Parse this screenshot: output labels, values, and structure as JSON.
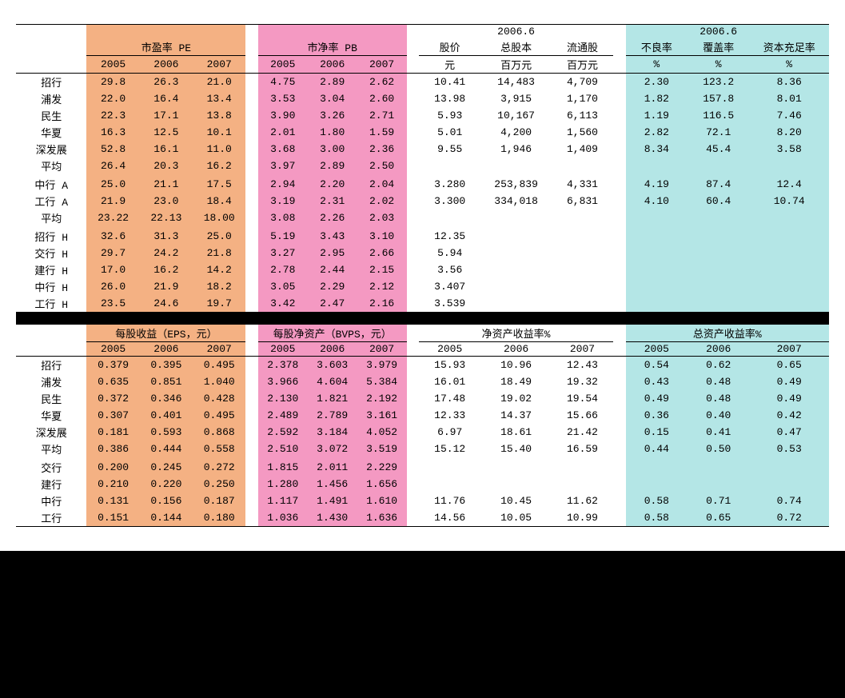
{
  "colors": {
    "page_bg": "#ffffff",
    "outer_bg": "#000000",
    "orange": "#f4b183",
    "pink": "#f499c2",
    "cyan": "#b4e6e6",
    "border": "#000000",
    "text": "#000000"
  },
  "typography": {
    "font_family": "SimSun / monospace",
    "font_size_pt": 10
  },
  "table1": {
    "super_headers": {
      "pe": "市盈率 PE",
      "pb": "市净率 PB",
      "price": "股价",
      "period": "2006.6",
      "total_cap": "总股本",
      "float": "流通股",
      "npl": "不良率",
      "coverage": "覆盖率",
      "car": "资本充足率"
    },
    "sub_headers": {
      "y2005": "2005",
      "y2006": "2006",
      "y2007": "2007",
      "yuan": "元",
      "mil_yuan": "百万元",
      "mil_yuan2": "百万元",
      "pct": "%"
    },
    "rows": [
      {
        "name": "招行",
        "pe": [
          "29.8",
          "26.3",
          "21.0"
        ],
        "pb": [
          "4.75",
          "2.89",
          "2.62"
        ],
        "price": "10.41",
        "cap": "14,483",
        "float": "4,709",
        "npl": "2.30",
        "cov": "123.2",
        "car": "8.36"
      },
      {
        "name": "浦发",
        "pe": [
          "22.0",
          "16.4",
          "13.4"
        ],
        "pb": [
          "3.53",
          "3.04",
          "2.60"
        ],
        "price": "13.98",
        "cap": "3,915",
        "float": "1,170",
        "npl": "1.82",
        "cov": "157.8",
        "car": "8.01"
      },
      {
        "name": "民生",
        "pe": [
          "22.3",
          "17.1",
          "13.8"
        ],
        "pb": [
          "3.90",
          "3.26",
          "2.71"
        ],
        "price": "5.93",
        "cap": "10,167",
        "float": "6,113",
        "npl": "1.19",
        "cov": "116.5",
        "car": "7.46"
      },
      {
        "name": "华夏",
        "pe": [
          "16.3",
          "12.5",
          "10.1"
        ],
        "pb": [
          "2.01",
          "1.80",
          "1.59"
        ],
        "price": "5.01",
        "cap": "4,200",
        "float": "1,560",
        "npl": "2.82",
        "cov": "72.1",
        "car": "8.20"
      },
      {
        "name": "深发展",
        "pe": [
          "52.8",
          "16.1",
          "11.0"
        ],
        "pb": [
          "3.68",
          "3.00",
          "2.36"
        ],
        "price": "9.55",
        "cap": "1,946",
        "float": "1,409",
        "npl": "8.34",
        "cov": "45.4",
        "car": "3.58"
      },
      {
        "name": "平均",
        "pe": [
          "26.4",
          "20.3",
          "16.2"
        ],
        "pb": [
          "3.97",
          "2.89",
          "2.50"
        ],
        "price": "",
        "cap": "",
        "float": "",
        "npl": "",
        "cov": "",
        "car": ""
      },
      {
        "name": "",
        "pe": [
          "",
          "",
          ""
        ],
        "pb": [
          "",
          "",
          ""
        ],
        "price": "",
        "cap": "",
        "float": "",
        "npl": "",
        "cov": "",
        "car": ""
      },
      {
        "name": "中行 A",
        "pe": [
          "25.0",
          "21.1",
          "17.5"
        ],
        "pb": [
          "2.94",
          "2.20",
          "2.04"
        ],
        "price": "3.280",
        "cap": "253,839",
        "float": "4,331",
        "npl": "4.19",
        "cov": "87.4",
        "car": "12.4"
      },
      {
        "name": "工行 A",
        "pe": [
          "21.9",
          "23.0",
          "18.4"
        ],
        "pb": [
          "3.19",
          "2.31",
          "2.02"
        ],
        "price": "3.300",
        "cap": "334,018",
        "float": "6,831",
        "npl": "4.10",
        "cov": "60.4",
        "car": "10.74"
      },
      {
        "name": "平均",
        "pe": [
          "23.22",
          "22.13",
          "18.00"
        ],
        "pb": [
          "3.08",
          "2.26",
          "2.03"
        ],
        "price": "",
        "cap": "",
        "float": "",
        "npl": "",
        "cov": "",
        "car": ""
      },
      {
        "name": "",
        "pe": [
          "",
          "",
          ""
        ],
        "pb": [
          "",
          "",
          ""
        ],
        "price": "",
        "cap": "",
        "float": "",
        "npl": "",
        "cov": "",
        "car": ""
      },
      {
        "name": "招行 H",
        "pe": [
          "32.6",
          "31.3",
          "25.0"
        ],
        "pb": [
          "5.19",
          "3.43",
          "3.10"
        ],
        "price": "12.35",
        "cap": "",
        "float": "",
        "npl": "",
        "cov": "",
        "car": ""
      },
      {
        "name": "交行 H",
        "pe": [
          "29.7",
          "24.2",
          "21.8"
        ],
        "pb": [
          "3.27",
          "2.95",
          "2.66"
        ],
        "price": "5.94",
        "cap": "",
        "float": "",
        "npl": "",
        "cov": "",
        "car": ""
      },
      {
        "name": "建行 H",
        "pe": [
          "17.0",
          "16.2",
          "14.2"
        ],
        "pb": [
          "2.78",
          "2.44",
          "2.15"
        ],
        "price": "3.56",
        "cap": "",
        "float": "",
        "npl": "",
        "cov": "",
        "car": ""
      },
      {
        "name": "中行 H",
        "pe": [
          "26.0",
          "21.9",
          "18.2"
        ],
        "pb": [
          "3.05",
          "2.29",
          "2.12"
        ],
        "price": "3.407",
        "cap": "",
        "float": "",
        "npl": "",
        "cov": "",
        "car": ""
      },
      {
        "name": "工行 H",
        "pe": [
          "23.5",
          "24.6",
          "19.7"
        ],
        "pb": [
          "3.42",
          "2.47",
          "2.16"
        ],
        "price": "3.539",
        "cap": "",
        "float": "",
        "npl": "",
        "cov": "",
        "car": ""
      }
    ]
  },
  "table2": {
    "super_headers": {
      "eps": "每股收益（EPS，元）",
      "bvps": "每股净资产（BVPS，元）",
      "roe": "净资产收益率%",
      "roa": "总资产收益率%"
    },
    "sub_headers": {
      "y2005": "2005",
      "y2006": "2006",
      "y2007": "2007"
    },
    "rows": [
      {
        "name": "招行",
        "eps": [
          "0.379",
          "0.395",
          "0.495"
        ],
        "bvps": [
          "2.378",
          "3.603",
          "3.979"
        ],
        "roe": [
          "15.93",
          "10.96",
          "12.43"
        ],
        "roa": [
          "0.54",
          "0.62",
          "0.65"
        ]
      },
      {
        "name": "浦发",
        "eps": [
          "0.635",
          "0.851",
          "1.040"
        ],
        "bvps": [
          "3.966",
          "4.604",
          "5.384"
        ],
        "roe": [
          "16.01",
          "18.49",
          "19.32"
        ],
        "roa": [
          "0.43",
          "0.48",
          "0.49"
        ]
      },
      {
        "name": "民生",
        "eps": [
          "0.372",
          "0.346",
          "0.428"
        ],
        "bvps": [
          "2.130",
          "1.821",
          "2.192"
        ],
        "roe": [
          "17.48",
          "19.02",
          "19.54"
        ],
        "roa": [
          "0.49",
          "0.48",
          "0.49"
        ]
      },
      {
        "name": "华夏",
        "eps": [
          "0.307",
          "0.401",
          "0.495"
        ],
        "bvps": [
          "2.489",
          "2.789",
          "3.161"
        ],
        "roe": [
          "12.33",
          "14.37",
          "15.66"
        ],
        "roa": [
          "0.36",
          "0.40",
          "0.42"
        ]
      },
      {
        "name": "深发展",
        "eps": [
          "0.181",
          "0.593",
          "0.868"
        ],
        "bvps": [
          "2.592",
          "3.184",
          "4.052"
        ],
        "roe": [
          "6.97",
          "18.61",
          "21.42"
        ],
        "roa": [
          "0.15",
          "0.41",
          "0.47"
        ]
      },
      {
        "name": "平均",
        "eps": [
          "0.386",
          "0.444",
          "0.558"
        ],
        "bvps": [
          "2.510",
          "3.072",
          "3.519"
        ],
        "roe": [
          "15.12",
          "15.40",
          "16.59"
        ],
        "roa": [
          "0.44",
          "0.50",
          "0.53"
        ]
      },
      {
        "name": "",
        "eps": [
          "",
          "",
          ""
        ],
        "bvps": [
          "",
          "",
          ""
        ],
        "roe": [
          "",
          "",
          ""
        ],
        "roa": [
          "",
          "",
          ""
        ]
      },
      {
        "name": "交行",
        "eps": [
          "0.200",
          "0.245",
          "0.272"
        ],
        "bvps": [
          "1.815",
          "2.011",
          "2.229"
        ],
        "roe": [
          "",
          "",
          ""
        ],
        "roa": [
          "",
          "",
          ""
        ]
      },
      {
        "name": "建行",
        "eps": [
          "0.210",
          "0.220",
          "0.250"
        ],
        "bvps": [
          "1.280",
          "1.456",
          "1.656"
        ],
        "roe": [
          "",
          "",
          ""
        ],
        "roa": [
          "",
          "",
          ""
        ]
      },
      {
        "name": "中行",
        "eps": [
          "0.131",
          "0.156",
          "0.187"
        ],
        "bvps": [
          "1.117",
          "1.491",
          "1.610"
        ],
        "roe": [
          "11.76",
          "10.45",
          "11.62"
        ],
        "roa": [
          "0.58",
          "0.71",
          "0.74"
        ]
      },
      {
        "name": "工行",
        "eps": [
          "0.151",
          "0.144",
          "0.180"
        ],
        "bvps": [
          "1.036",
          "1.430",
          "1.636"
        ],
        "roe": [
          "14.56",
          "10.05",
          "10.99"
        ],
        "roa": [
          "0.58",
          "0.65",
          "0.72"
        ]
      }
    ]
  }
}
